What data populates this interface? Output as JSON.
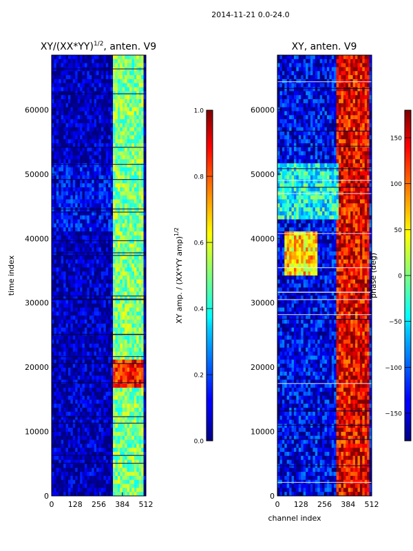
{
  "figure": {
    "suptitle": "2014-11-21 0.0-24.0"
  },
  "chart_data": [
    {
      "type": "heatmap",
      "title": "XY/(XX*YY)$^{1/2}$, anten. V9",
      "title_main": "XY/(XX*YY)",
      "title_exponent": "1/2",
      "title_suffix": ", anten. V9",
      "xlabel": "",
      "ylabel": "time index",
      "xlim": [
        0,
        512
      ],
      "ylim": [
        0,
        68500
      ],
      "xticks": [
        0,
        128,
        256,
        384,
        512
      ],
      "xtick_labels": [
        "0",
        "128",
        "256",
        "384",
        "512"
      ],
      "yticks": [
        0,
        10000,
        20000,
        30000,
        40000,
        50000,
        60000
      ],
      "ytick_labels": [
        "0",
        "10000",
        "20000",
        "30000",
        "40000",
        "50000",
        "60000"
      ],
      "colormap": "jet",
      "colorbar": {
        "label": "XY amp. / (XX*YY amp)$^{1/2}$",
        "label_main": "XY amp. / (XX*YY amp)",
        "label_exponent": "1/2",
        "range": [
          0.0,
          1.0
        ],
        "ticks": [
          0.0,
          0.2,
          0.4,
          0.6,
          0.8,
          1.0
        ],
        "tick_labels": [
          "0.0",
          "0.2",
          "0.4",
          "0.6",
          "0.8",
          "1.0"
        ]
      },
      "regions": [
        {
          "desc": "background low amplitude",
          "x": [
            0,
            512
          ],
          "y": [
            0,
            68500
          ],
          "value": 0.05
        },
        {
          "desc": "active band",
          "x": [
            330,
            500
          ],
          "y": [
            0,
            68500
          ],
          "value": 0.5
        },
        {
          "desc": "bright band",
          "x": [
            330,
            500
          ],
          "y": [
            17000,
            21000
          ],
          "value": 0.85
        },
        {
          "desc": "horizontal stripe",
          "x": [
            0,
            512
          ],
          "y": [
            16700,
            17000
          ],
          "value": 0.45
        },
        {
          "desc": "upper mid block",
          "x": [
            0,
            330
          ],
          "y": [
            41000,
            51500
          ],
          "value": 0.12
        }
      ]
    },
    {
      "type": "heatmap",
      "title": "XY, anten. V9",
      "xlabel": "channel index",
      "ylabel": "",
      "xlim": [
        0,
        512
      ],
      "ylim": [
        0,
        68500
      ],
      "xticks": [
        0,
        128,
        256,
        384,
        512
      ],
      "xtick_labels": [
        "0",
        "128",
        "256",
        "384",
        "512"
      ],
      "yticks": [
        0,
        10000,
        20000,
        30000,
        40000,
        50000,
        60000
      ],
      "ytick_labels": [
        "0",
        "10000",
        "20000",
        "30000",
        "40000",
        "50000",
        "60000"
      ],
      "colormap": "jet",
      "colorbar": {
        "label": "phase (deg)",
        "range": [
          -180,
          180
        ],
        "ticks": [
          -150,
          -100,
          -50,
          0,
          50,
          100,
          150
        ],
        "tick_labels": [
          "−150",
          "−100",
          "−50",
          "0",
          "50",
          "100",
          "150"
        ]
      },
      "regions": [
        {
          "desc": "background phase",
          "x": [
            0,
            512
          ],
          "y": [
            0,
            68500
          ],
          "value": -140
        },
        {
          "desc": "active band high phase",
          "x": [
            320,
            500
          ],
          "y": [
            0,
            68500
          ],
          "value": 140
        },
        {
          "desc": "cyan upper block",
          "x": [
            0,
            330
          ],
          "y": [
            43000,
            51500
          ],
          "value": -40
        },
        {
          "desc": "drifting feature",
          "x": [
            40,
            220
          ],
          "y": [
            34000,
            41000
          ],
          "value": 60
        }
      ]
    }
  ]
}
